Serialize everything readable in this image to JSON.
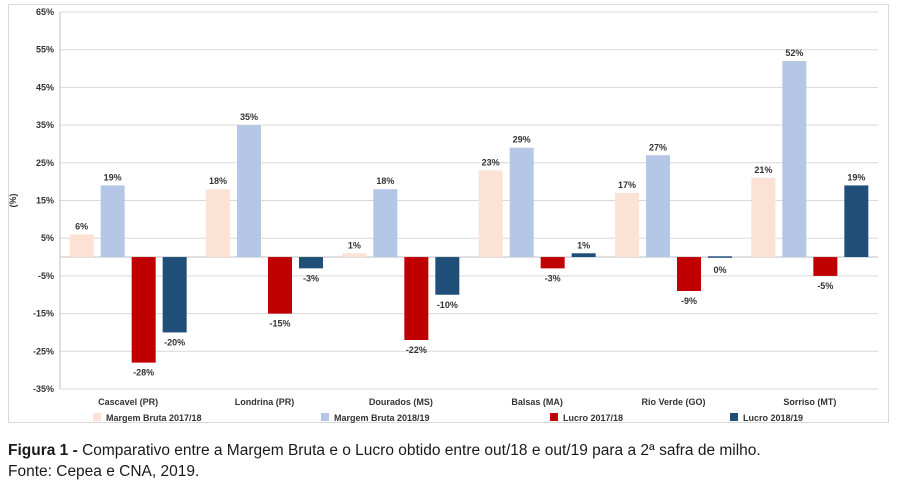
{
  "chart_data": {
    "type": "bar",
    "ylabel": "(%)",
    "ylim": [
      -35,
      65
    ],
    "yticks": [
      "65%",
      "55%",
      "45%",
      "35%",
      "25%",
      "15%",
      "5%",
      "-5%",
      "-15%",
      "-25%",
      "-35%"
    ],
    "ytick_values": [
      65,
      55,
      45,
      35,
      25,
      15,
      5,
      -5,
      -15,
      -25,
      -35
    ],
    "categories": [
      "Cascavel (PR)",
      "Londrina (PR)",
      "Dourados (MS)",
      "Balsas (MA)",
      "Rio Verde (GO)",
      "Sorriso (MT)"
    ],
    "series": [
      {
        "name": "Margem Bruta 2017/18",
        "color": "#FBE2D5",
        "values": [
          6,
          18,
          1,
          23,
          17,
          21
        ],
        "labels": [
          "6%",
          "18%",
          "1%",
          "23%",
          "17%",
          "21%"
        ]
      },
      {
        "name": "Margem Bruta 2018/19",
        "color": "#B4C7E7",
        "values": [
          19,
          35,
          18,
          29,
          27,
          52
        ],
        "labels": [
          "19%",
          "35%",
          "18%",
          "29%",
          "27%",
          "52%"
        ]
      },
      {
        "name": "Lucro 2017/18",
        "color": "#C00000",
        "values": [
          -28,
          -15,
          -22,
          -3,
          -9,
          -5
        ],
        "labels": [
          "-28%",
          "-15%",
          "-22%",
          "-3%",
          "-9%",
          "-5%"
        ]
      },
      {
        "name": "Lucro 2018/19",
        "color": "#1F4E79",
        "values": [
          -20,
          -3,
          -10,
          1,
          0,
          19
        ],
        "labels": [
          "-20%",
          "-3%",
          "-10%",
          "1%",
          "0%",
          "19%"
        ]
      }
    ],
    "grid": true,
    "legend_position": "bottom"
  },
  "caption": {
    "figure_label": "Figura 1 -",
    "text": " Comparativo entre a Margem Bruta e o Lucro obtido entre out/18 e out/19 para a 2ª safra de milho.",
    "source": "Fonte: Cepea e CNA, 2019."
  }
}
